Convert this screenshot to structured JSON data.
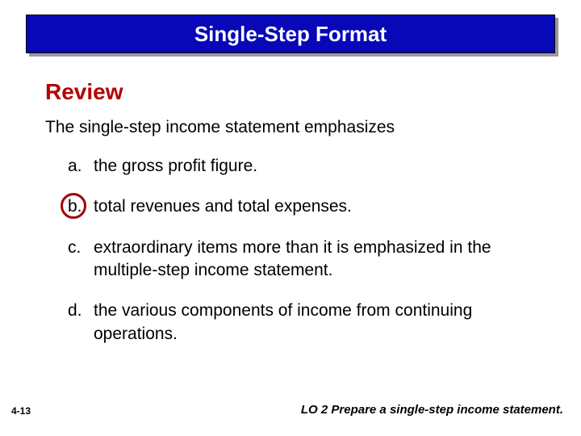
{
  "banner": {
    "title": "Single-Step Format",
    "background_color": "#0808b8",
    "text_color": "#ffffff",
    "shadow_color": "#9a9a9a",
    "title_fontsize": 26
  },
  "review": {
    "heading": "Review",
    "heading_color": "#b40000",
    "heading_fontsize": 28,
    "question": "The single-step income statement emphasizes",
    "question_fontsize": 21,
    "options": [
      {
        "letter": "a.",
        "text": "the gross profit figure.",
        "correct": false
      },
      {
        "letter": "b.",
        "text": "total revenues and total expenses.",
        "correct": true
      },
      {
        "letter": "c.",
        "text": "extraordinary items more than it is emphasized in the multiple-step income statement.",
        "correct": false
      },
      {
        "letter": "d.",
        "text": "the various components of income from continuing operations.",
        "correct": false
      }
    ],
    "circle_color": "#a00000"
  },
  "footer": {
    "slide_number": "4-13",
    "learning_objective": "LO 2  Prepare a single-step income statement."
  }
}
